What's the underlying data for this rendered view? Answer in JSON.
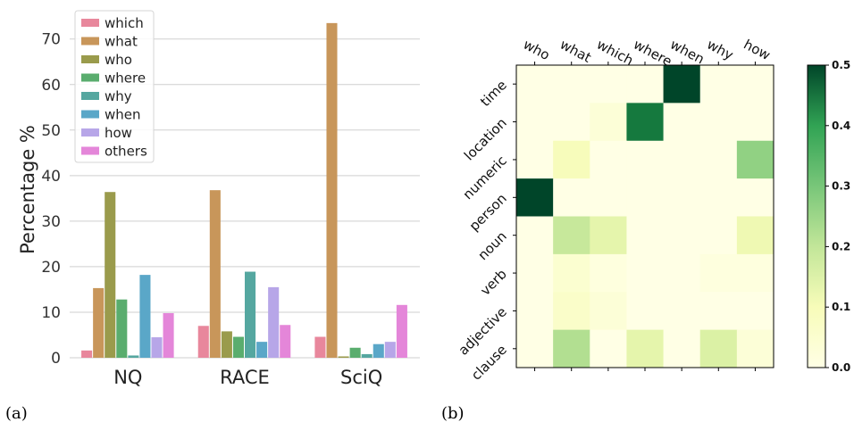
{
  "chart_data": [
    {
      "type": "bar",
      "panel_label": "(a)",
      "ylabel": "Percentage %",
      "ylim": [
        0,
        77
      ],
      "yticks": [
        0,
        10,
        20,
        30,
        40,
        50,
        60,
        70
      ],
      "grid": true,
      "legend_position": "top-left",
      "categories": [
        "NQ",
        "RACE",
        "SciQ"
      ],
      "series": [
        {
          "name": "which",
          "color": "#e8879c",
          "values": [
            1.6,
            7.0,
            4.6
          ]
        },
        {
          "name": "what",
          "color": "#c8965a",
          "values": [
            15.3,
            36.8,
            73.5
          ]
        },
        {
          "name": "who",
          "color": "#9a9b4c",
          "values": [
            36.4,
            5.8,
            0.3
          ]
        },
        {
          "name": "where",
          "color": "#5aad6e",
          "values": [
            12.8,
            4.6,
            2.2
          ]
        },
        {
          "name": "why",
          "color": "#55a7a0",
          "values": [
            0.5,
            18.9,
            0.8
          ]
        },
        {
          "name": "when",
          "color": "#5aa7c8",
          "values": [
            18.2,
            3.5,
            3.0
          ]
        },
        {
          "name": "how",
          "color": "#b7a6e8",
          "values": [
            4.5,
            15.5,
            3.5
          ]
        },
        {
          "name": "others",
          "color": "#e486d9",
          "values": [
            9.8,
            7.2,
            11.6
          ]
        }
      ]
    },
    {
      "type": "heatmap",
      "panel_label": "(b)",
      "x_labels": [
        "who",
        "what",
        "which",
        "where",
        "when",
        "why",
        "how"
      ],
      "y_labels": [
        "time",
        "location",
        "numeric",
        "person",
        "noun",
        "verb",
        "adjective",
        "clause"
      ],
      "values": [
        [
          0.0,
          0.0,
          0.0,
          0.0,
          0.5,
          0.0,
          0.0
        ],
        [
          0.0,
          0.0,
          0.02,
          0.4,
          0.0,
          0.0,
          0.0
        ],
        [
          0.0,
          0.06,
          0.0,
          0.0,
          0.0,
          0.0,
          0.22
        ],
        [
          0.5,
          0.0,
          0.0,
          0.0,
          0.0,
          0.0,
          0.0
        ],
        [
          0.0,
          0.15,
          0.1,
          0.0,
          0.0,
          0.0,
          0.08
        ],
        [
          0.0,
          0.03,
          0.01,
          0.0,
          0.0,
          0.01,
          0.01
        ],
        [
          0.0,
          0.04,
          0.02,
          0.0,
          0.0,
          0.0,
          0.0
        ],
        [
          0.0,
          0.18,
          0.0,
          0.1,
          0.0,
          0.12,
          0.02
        ]
      ],
      "colorbar": {
        "min": 0.0,
        "max": 0.5,
        "ticks": [
          "0.0",
          "0.1",
          "0.2",
          "0.3",
          "0.4",
          "0.5"
        ]
      }
    }
  ]
}
